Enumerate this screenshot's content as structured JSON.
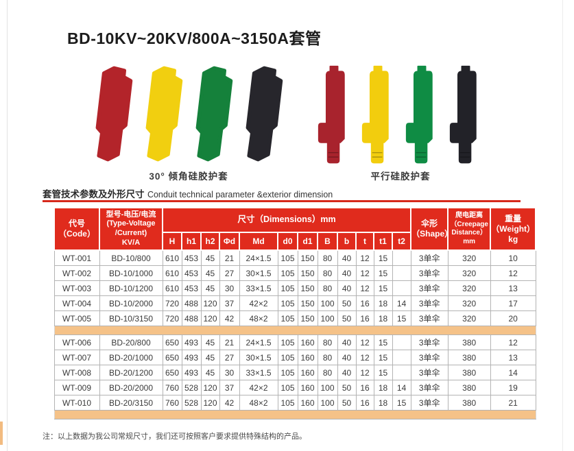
{
  "title": "BD-10KV~20KV/800A~3150A套管",
  "products": {
    "groups": [
      {
        "shape": "angled",
        "caption": "30°  倾角硅胶护套",
        "items": [
          {
            "name": "red",
            "hex": "#b3242a"
          },
          {
            "name": "yellow",
            "hex": "#f1cf10"
          },
          {
            "name": "green",
            "hex": "#15813b"
          },
          {
            "name": "black",
            "hex": "#27262c"
          }
        ]
      },
      {
        "shape": "parallel",
        "caption": "平行硅胶护套",
        "items": [
          {
            "name": "red",
            "hex": "#a8232d"
          },
          {
            "name": "yellow",
            "hex": "#f2cd0e"
          },
          {
            "name": "green",
            "hex": "#0f8c44"
          },
          {
            "name": "black",
            "hex": "#222228"
          }
        ]
      }
    ]
  },
  "section": {
    "title_zh": "套管技术参数及外形尺寸",
    "title_en": "Conduit technical parameter &exterior dimension"
  },
  "table": {
    "headers": {
      "code": [
        "代号",
        "（Code）"
      ],
      "type": [
        "型号-电压/电流",
        "(Type-Voltage",
        "/Current)",
        "KV/A"
      ],
      "dims": "尺寸（Dimensions）mm",
      "dim_cols": [
        "H",
        "h1",
        "h2",
        "Φd",
        "Md",
        "d0",
        "d1",
        "B",
        "b",
        "t",
        "t1",
        "t2"
      ],
      "shape": [
        "伞形",
        "（Shape）"
      ],
      "creepage": [
        "爬电距离",
        "（Creepage",
        "Distance）",
        "mm"
      ],
      "weight": [
        "重量",
        "（Weight）",
        "kg"
      ]
    },
    "sections": [
      {
        "rows": [
          [
            "WT-001",
            "BD-10/800",
            "610",
            "453",
            "45",
            "21",
            "24×1.5",
            "105",
            "150",
            "80",
            "40",
            "12",
            "15",
            "",
            "3单伞",
            "320",
            "10"
          ],
          [
            "WT-002",
            "BD-10/1000",
            "610",
            "453",
            "45",
            "27",
            "30×1.5",
            "105",
            "150",
            "80",
            "40",
            "12",
            "15",
            "",
            "3单伞",
            "320",
            "12"
          ],
          [
            "WT-003",
            "BD-10/1200",
            "610",
            "453",
            "45",
            "30",
            "33×1.5",
            "105",
            "150",
            "80",
            "40",
            "12",
            "15",
            "",
            "3单伞",
            "320",
            "13"
          ],
          [
            "WT-004",
            "BD-10/2000",
            "720",
            "488",
            "120",
            "37",
            "42×2",
            "105",
            "150",
            "100",
            "50",
            "16",
            "18",
            "14",
            "3单伞",
            "320",
            "17"
          ],
          [
            "WT-005",
            "BD-10/3150",
            "720",
            "488",
            "120",
            "42",
            "48×2",
            "105",
            "150",
            "100",
            "50",
            "16",
            "18",
            "15",
            "3单伞",
            "320",
            "20"
          ]
        ]
      },
      {
        "rows": [
          [
            "WT-006",
            "BD-20/800",
            "650",
            "493",
            "45",
            "21",
            "24×1.5",
            "105",
            "160",
            "80",
            "40",
            "12",
            "15",
            "",
            "3单伞",
            "380",
            "12"
          ],
          [
            "WT-007",
            "BD-20/1000",
            "650",
            "493",
            "45",
            "27",
            "30×1.5",
            "105",
            "160",
            "80",
            "40",
            "12",
            "15",
            "",
            "3单伞",
            "380",
            "13"
          ],
          [
            "WT-008",
            "BD-20/1200",
            "650",
            "493",
            "45",
            "30",
            "33×1.5",
            "105",
            "160",
            "80",
            "40",
            "12",
            "15",
            "",
            "3单伞",
            "380",
            "14"
          ],
          [
            "WT-009",
            "BD-20/2000",
            "760",
            "528",
            "120",
            "37",
            "42×2",
            "105",
            "160",
            "100",
            "50",
            "16",
            "18",
            "14",
            "3单伞",
            "380",
            "19"
          ],
          [
            "WT-010",
            "BD-20/3150",
            "760",
            "528",
            "120",
            "42",
            "48×2",
            "105",
            "160",
            "100",
            "50",
            "16",
            "18",
            "15",
            "3单伞",
            "380",
            "21"
          ]
        ]
      }
    ]
  },
  "note": "注：以上数据为我公司常规尺寸，我们还可按照客户要求提供特殊结构的产品。",
  "colors": {
    "header_red": "#e02b1d",
    "underline_red": "#d6281b",
    "separator_orange": "#f5c288"
  }
}
